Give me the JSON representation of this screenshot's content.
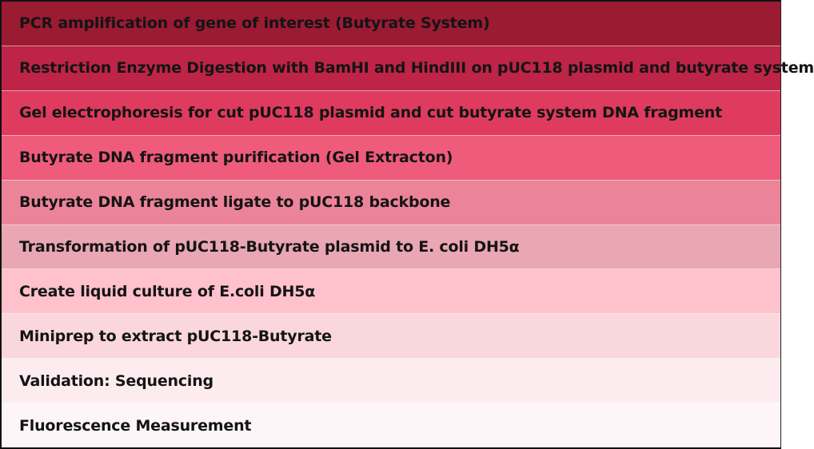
{
  "steps": [
    {
      "label": "PCR amplification of gene of interest (Butyrate System)",
      "color": "#9b1b33"
    },
    {
      "label": "Restriction Enzyme Digestion with BamHI and HindIII on pUC118 plasmid and butyrate system",
      "color": "#be2447"
    },
    {
      "label": "Gel electrophoresis for cut pUC118 plasmid and cut butyrate system DNA fragment",
      "color": "#df3b5e"
    },
    {
      "label": "Butyrate DNA fragment purification (Gel Extracton)",
      "color": "#ef5c7b"
    },
    {
      "label": "Butyrate DNA fragment ligate to pUC118 backbone",
      "color": "#ec8499"
    },
    {
      "label": "Transformation of pUC118-Butyrate plasmid to E. coli DH5α",
      "color": "#e9a6b3"
    },
    {
      "label": "Create liquid culture of E.coli DH5α",
      "color": "#ffc1cc"
    },
    {
      "label": "Miniprep to extract pUC118-Butyrate",
      "color": "#fad6dd"
    },
    {
      "label": "Validation: Sequencing",
      "color": "#fdecef"
    },
    {
      "label": "Fluorescence Measurement",
      "color": "#fdf5f7"
    }
  ]
}
